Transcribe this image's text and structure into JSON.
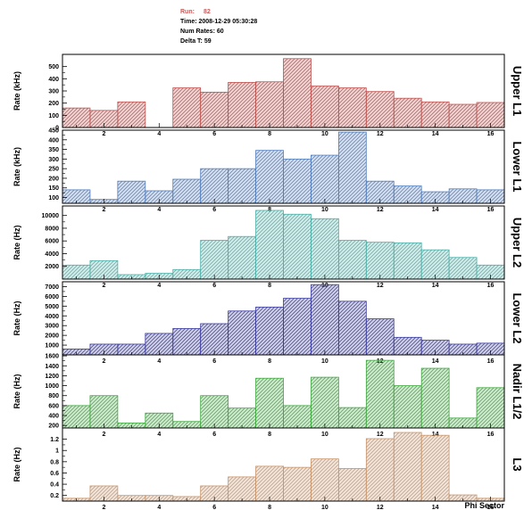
{
  "header": {
    "run_label": "Run:",
    "run_value": "82",
    "time_line": "Time: 2008-12-29 05:30:28",
    "num_rates_line": "Num Rates: 60",
    "delta_t_line": "Delta T: 59"
  },
  "x_axis_label": "Phi Sector",
  "chart_data": [
    {
      "type": "bar",
      "title": "Upper L1",
      "ylabel": "Rate (kHz)",
      "color": "#c0504d",
      "ylim": [
        0,
        600
      ],
      "yticks": [
        0,
        100,
        200,
        300,
        400,
        500
      ],
      "xlim": [
        0.5,
        16.5
      ],
      "xticks": [
        2,
        4,
        6,
        8,
        10,
        12,
        14,
        16
      ],
      "x": [
        1,
        2,
        3,
        4,
        5,
        6,
        7,
        8,
        9,
        10,
        11,
        12,
        13,
        14,
        15,
        16
      ],
      "values": [
        160,
        140,
        210,
        0,
        325,
        290,
        370,
        375,
        565,
        340,
        325,
        295,
        240,
        210,
        190,
        205
      ]
    },
    {
      "type": "bar",
      "title": "Lower L1",
      "ylabel": "Rate (kHz)",
      "color": "#4f7dbf",
      "ylim": [
        70,
        450
      ],
      "yticks": [
        100,
        150,
        200,
        250,
        300,
        350,
        400,
        450
      ],
      "xlim": [
        0.5,
        16.5
      ],
      "xticks": [
        2,
        4,
        6,
        8,
        10,
        12,
        14,
        16
      ],
      "x": [
        1,
        2,
        3,
        4,
        5,
        6,
        7,
        8,
        9,
        10,
        11,
        12,
        13,
        14,
        15,
        16
      ],
      "values": [
        140,
        90,
        185,
        135,
        195,
        250,
        250,
        345,
        300,
        320,
        440,
        185,
        160,
        130,
        145,
        140
      ]
    },
    {
      "type": "bar",
      "title": "Upper L2",
      "ylabel": "Rate (Hz)",
      "color": "#4ab0a8",
      "ylim": [
        0,
        11500
      ],
      "yticks": [
        2000,
        4000,
        6000,
        8000,
        10000
      ],
      "xlim": [
        0.5,
        16.5
      ],
      "xticks": [
        2,
        4,
        6,
        8,
        10,
        12,
        14,
        16
      ],
      "x": [
        1,
        2,
        3,
        4,
        5,
        6,
        7,
        8,
        9,
        10,
        11,
        12,
        13,
        14,
        15,
        16
      ],
      "values": [
        2200,
        2900,
        700,
        900,
        1500,
        6100,
        6700,
        10800,
        10200,
        9500,
        6100,
        5800,
        5700,
        4600,
        3400,
        2200
      ]
    },
    {
      "type": "bar",
      "title": "Lower L2",
      "ylabel": "Rate (Hz)",
      "color": "#3a3aa0",
      "ylim": [
        0,
        7500
      ],
      "yticks": [
        1000,
        2000,
        3000,
        4000,
        5000,
        6000,
        7000
      ],
      "xlim": [
        0.5,
        16.5
      ],
      "xticks": [
        2,
        4,
        6,
        8,
        10,
        12,
        14,
        16
      ],
      "x": [
        1,
        2,
        3,
        4,
        5,
        6,
        7,
        8,
        9,
        10,
        11,
        12,
        13,
        14,
        15,
        16
      ],
      "values": [
        600,
        1100,
        1100,
        2200,
        2700,
        3200,
        4500,
        4900,
        5800,
        7200,
        5500,
        3700,
        1800,
        1500,
        1100,
        1200
      ]
    },
    {
      "type": "bar",
      "title": "Nadir L1/2",
      "ylabel": "Rate (Hz)",
      "color": "#3ca83c",
      "ylim": [
        150,
        1620
      ],
      "yticks": [
        200,
        400,
        600,
        800,
        1000,
        1200,
        1400,
        1600
      ],
      "xlim": [
        0.5,
        16.5
      ],
      "xticks": [
        2,
        4,
        6,
        8,
        10,
        12,
        14,
        16
      ],
      "x": [
        1,
        2,
        3,
        4,
        5,
        6,
        7,
        8,
        9,
        10,
        11,
        12,
        13,
        14,
        15,
        16
      ],
      "values": [
        600,
        800,
        250,
        450,
        280,
        800,
        550,
        1150,
        600,
        1170,
        560,
        1510,
        1000,
        1350,
        350,
        960
      ]
    },
    {
      "type": "bar",
      "title": "L3",
      "ylabel": "Rate (Hz)",
      "color": "#c9956a",
      "ylim": [
        0.1,
        1.4
      ],
      "yticks": [
        0.2,
        0.4,
        0.6,
        0.8,
        1,
        1.2
      ],
      "xlim": [
        0.5,
        16.5
      ],
      "xticks": [
        2,
        4,
        6,
        8,
        10,
        12,
        14,
        16
      ],
      "x": [
        1,
        2,
        3,
        4,
        5,
        6,
        7,
        8,
        9,
        10,
        11,
        12,
        13,
        14,
        15,
        16
      ],
      "values": [
        0.15,
        0.37,
        0.2,
        0.2,
        0.18,
        0.37,
        0.53,
        0.72,
        0.7,
        0.85,
        0.68,
        1.21,
        1.32,
        1.27,
        0.21,
        0.15
      ]
    }
  ]
}
